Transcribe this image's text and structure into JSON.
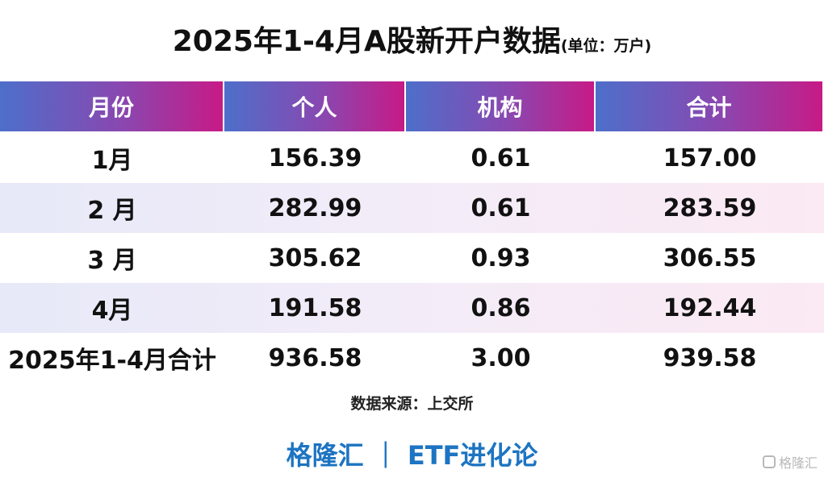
{
  "header": {
    "title": "2025年1-4月A股新开户数据",
    "unit": "(单位：万户)"
  },
  "table": {
    "columns": [
      "月份",
      "个人",
      "机构",
      "合计"
    ],
    "rows": [
      [
        "1月",
        "156.39",
        "0.61",
        "157.00"
      ],
      [
        "2 月",
        "282.99",
        "0.61",
        "283.59"
      ],
      [
        "3 月",
        "305.62",
        "0.93",
        "306.55"
      ],
      [
        "4月",
        "191.58",
        "0.86",
        "192.44"
      ],
      [
        "2025年1-4月合计",
        "936.58",
        "3.00",
        "939.58"
      ]
    ]
  },
  "source": "数据来源：上交所",
  "footer": "格隆汇 ｜ ETF进化论",
  "watermark": "格隆汇"
}
